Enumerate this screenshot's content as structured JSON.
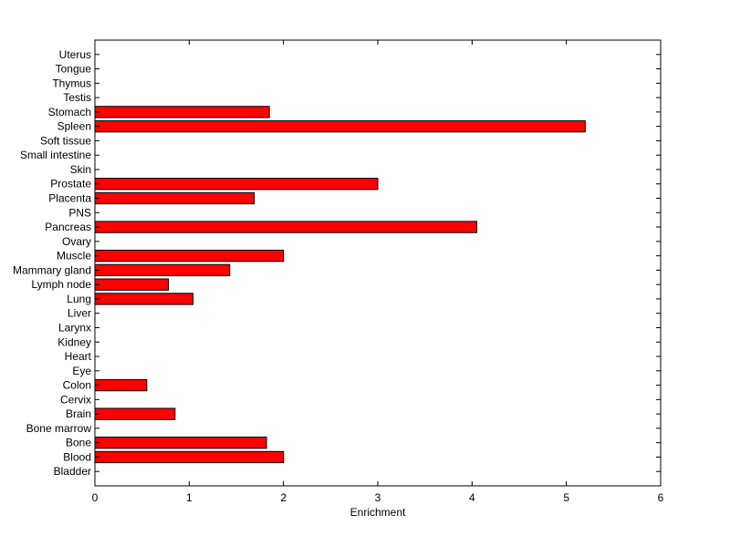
{
  "chart_data": {
    "type": "bar",
    "orientation": "horizontal",
    "title": "",
    "xlabel": "Enrichment",
    "ylabel": "",
    "xlim": [
      0,
      6
    ],
    "xticks": [
      0,
      1,
      2,
      3,
      4,
      5,
      6
    ],
    "grid": false,
    "legend": "none",
    "bar_color": "#ff0000",
    "edge_color": "#000000",
    "categories": [
      "Bladder",
      "Blood",
      "Bone",
      "Bone marrow",
      "Brain",
      "Cervix",
      "Colon",
      "Eye",
      "Heart",
      "Kidney",
      "Larynx",
      "Liver",
      "Lung",
      "Lymph node",
      "Mammary gland",
      "Muscle",
      "Ovary",
      "Pancreas",
      "PNS",
      "Placenta",
      "Prostate",
      "Skin",
      "Small intestine",
      "Soft tissue",
      "Spleen",
      "Stomach",
      "Testis",
      "Thymus",
      "Tongue",
      "Uterus"
    ],
    "values": [
      0,
      2.0,
      1.82,
      0,
      0.85,
      0,
      0.55,
      0,
      0,
      0,
      0,
      0,
      1.04,
      0.78,
      1.43,
      2.0,
      0,
      4.05,
      0,
      1.69,
      3.0,
      0,
      0,
      0,
      5.2,
      1.85,
      0,
      0,
      0,
      0
    ]
  }
}
